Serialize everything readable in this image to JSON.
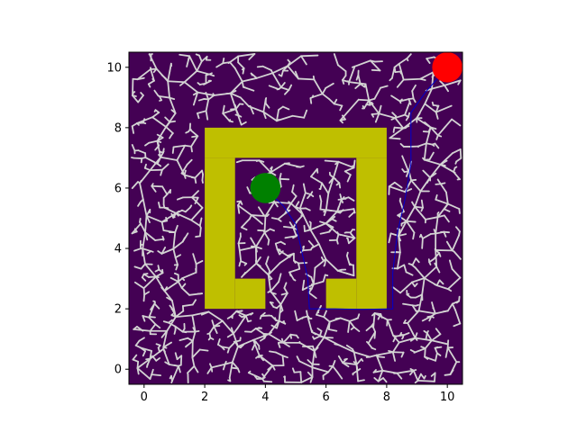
{
  "chart_data": {
    "type": "scatter",
    "subtype": "rrt-path-planning-map",
    "title": "",
    "xlabel": "",
    "ylabel": "",
    "xlim": [
      -0.5,
      10.5
    ],
    "ylim": [
      -0.5,
      10.5
    ],
    "xticks": [
      0,
      2,
      4,
      6,
      8,
      10
    ],
    "yticks": [
      0,
      2,
      4,
      6,
      8,
      10
    ],
    "xtick_labels": [
      "0",
      "2",
      "4",
      "6",
      "8",
      "10"
    ],
    "ytick_labels": [
      "0",
      "2",
      "4",
      "6",
      "8",
      "10"
    ],
    "grid": false,
    "colors": {
      "background": "#440154",
      "obstacle": "#bfbf00",
      "tree": "#d3d3d3",
      "path": "#0000cd",
      "start": "#008000",
      "goal": "#ff0000"
    },
    "obstacles": [
      {
        "name": "top-wall",
        "x0": 2,
        "y0": 7,
        "x1": 8,
        "y1": 8
      },
      {
        "name": "left-wall",
        "x0": 2,
        "y0": 2,
        "x1": 3,
        "y1": 7
      },
      {
        "name": "right-wall",
        "x0": 7,
        "y0": 2,
        "x1": 8,
        "y1": 7
      },
      {
        "name": "bottom-left-foot",
        "x0": 3,
        "y0": 2,
        "x1": 4,
        "y1": 3
      },
      {
        "name": "bottom-right-foot",
        "x0": 6,
        "y0": 2,
        "x1": 7,
        "y1": 3
      }
    ],
    "start": {
      "x": 4.0,
      "y": 6.0,
      "radius": 0.5
    },
    "goal": {
      "x": 10.0,
      "y": 10.0,
      "radius": 0.5
    },
    "path": [
      [
        4.0,
        6.0
      ],
      [
        4.6,
        5.4
      ],
      [
        5.0,
        4.8
      ],
      [
        5.2,
        3.9
      ],
      [
        5.4,
        3.0
      ],
      [
        5.45,
        2.0
      ],
      [
        6.3,
        2.0
      ],
      [
        7.2,
        1.98
      ],
      [
        8.2,
        2.0
      ],
      [
        8.2,
        3.2
      ],
      [
        8.35,
        4.5
      ],
      [
        8.6,
        5.6
      ],
      [
        8.8,
        6.8
      ],
      [
        8.8,
        8.5
      ],
      [
        9.3,
        9.2
      ],
      [
        10.0,
        10.0
      ]
    ],
    "tree_seed": 7
  }
}
